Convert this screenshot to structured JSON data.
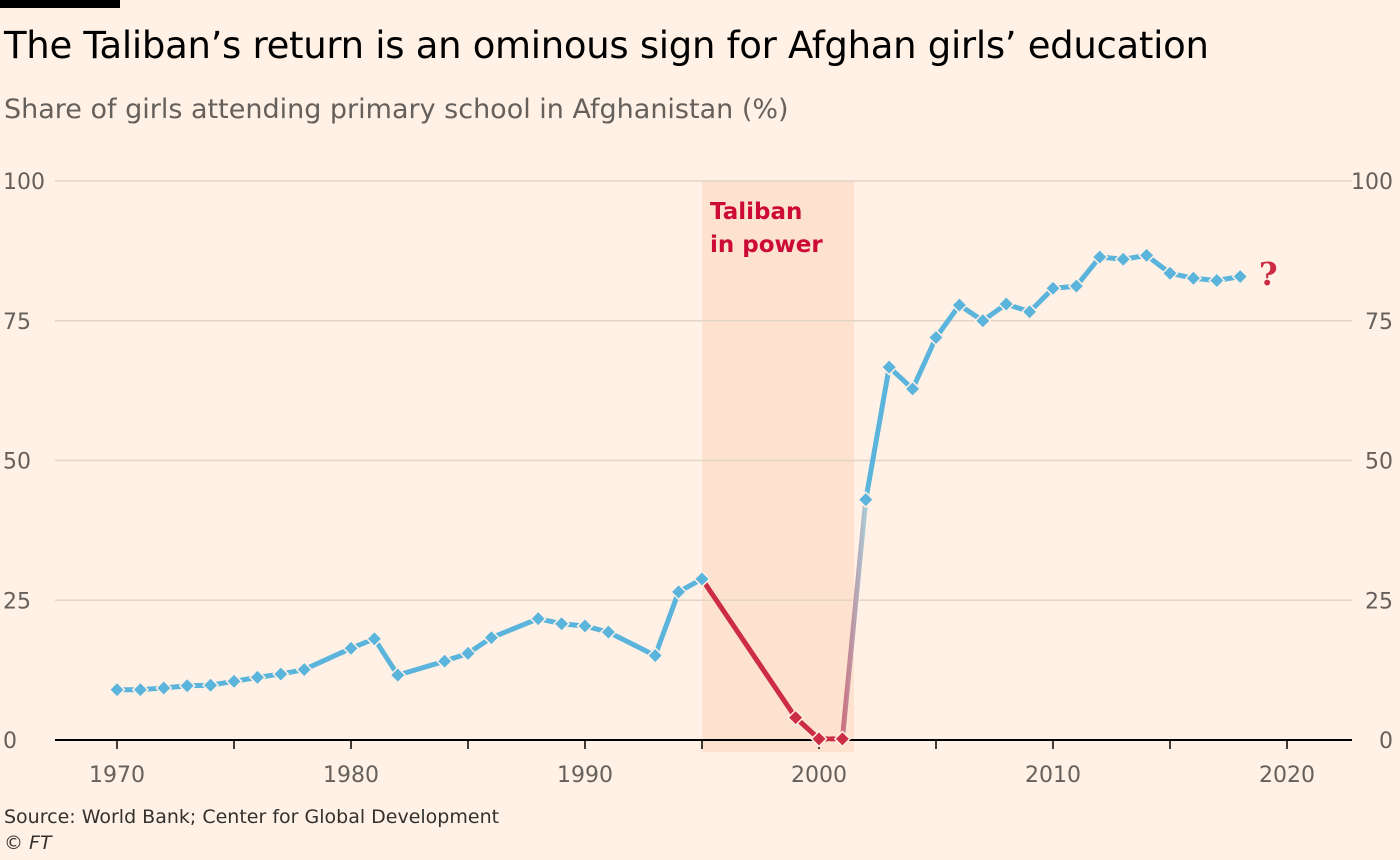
{
  "title": "The Taliban’s return is an ominous sign for Afghan girls’ education",
  "subtitle": "Share of girls attending primary school in Afghanistan (%)",
  "source": "Source: World Bank; Center for Global Development",
  "credit": "© FT",
  "chart_data": {
    "type": "line",
    "title": "The Taliban’s return is an ominous sign for Afghan girls’ education",
    "subtitle": "Share of girls attending primary school in Afghanistan (%)",
    "xlabel": "",
    "ylabel": "",
    "xlim": [
      1969,
      2023
    ],
    "ylim": [
      0,
      100
    ],
    "x_ticks": [
      1970,
      1980,
      1990,
      2000,
      2010,
      2020
    ],
    "y_ticks": [
      0,
      25,
      50,
      75,
      100
    ],
    "grid": "horizontal",
    "colors": {
      "line": "#5ab4dc",
      "taliban": "#cc2d45",
      "shade": "#fde3cf",
      "question": "#cc2d45"
    },
    "series": [
      {
        "x": [
          1970,
          1971,
          1972,
          1973,
          1974,
          1975,
          1976,
          1977,
          1978,
          1980,
          1981,
          1982,
          1984,
          1985,
          1986,
          1988,
          1989,
          1990,
          1991,
          1993,
          1994,
          1995,
          1999,
          2000,
          2001,
          2002,
          2003,
          2004,
          2005,
          2006,
          2007,
          2008,
          2009,
          2010,
          2011,
          2012,
          2013,
          2014,
          2015,
          2016,
          2017,
          2018
        ],
        "values": [
          9,
          9,
          9.3,
          9.7,
          9.8,
          10.5,
          11.2,
          11.8,
          12.6,
          16.4,
          18.1,
          11.6,
          14.1,
          15.5,
          18.3,
          21.7,
          20.8,
          20.4,
          19.3,
          15.1,
          26.5,
          28.8,
          4,
          0.2,
          0.2,
          43,
          66.7,
          62.8,
          72,
          77.8,
          75,
          78,
          76.6,
          80.8,
          81.2,
          86.4,
          86,
          86.7,
          83.5,
          82.6,
          82.2,
          82.9
        ]
      }
    ],
    "shaded_period": {
      "x_start": 1995,
      "x_end": 2001.5,
      "label_line1": "Taliban",
      "label_line2": "in power"
    },
    "annotation": {
      "text": "?",
      "x": 2019.2,
      "y": 83.5
    }
  }
}
